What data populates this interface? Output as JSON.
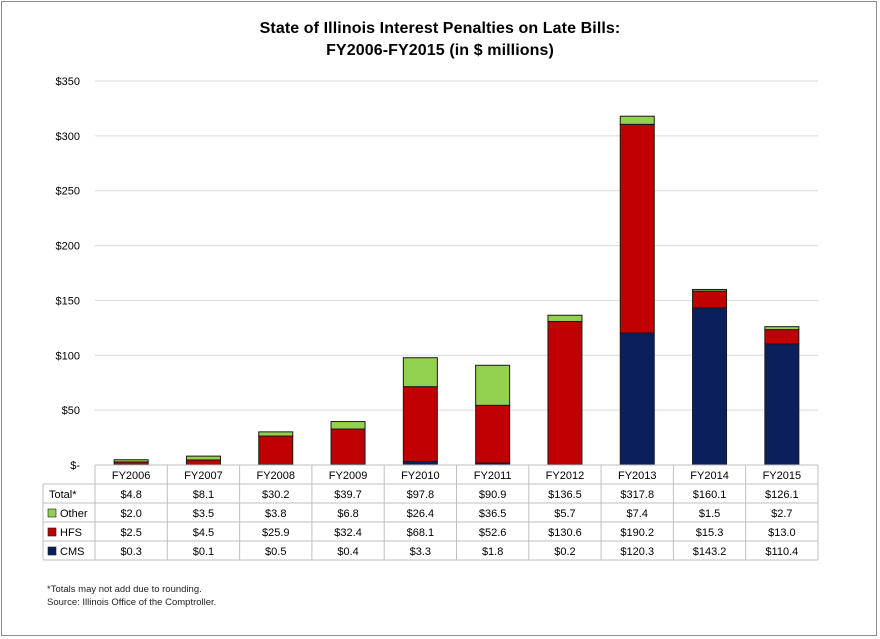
{
  "chart_data": {
    "type": "bar",
    "stacked": true,
    "title_line1": "State of Illinois Interest Penalties on Late Bills:",
    "title_line2": "FY2006-FY2015 (in $ millions)",
    "categories": [
      "FY2006",
      "FY2007",
      "FY2008",
      "FY2009",
      "FY2010",
      "FY2011",
      "FY2012",
      "FY2013",
      "FY2014",
      "FY2015"
    ],
    "ylim": [
      0,
      350
    ],
    "yticks": [
      {
        "value": 0,
        "label": "$-"
      },
      {
        "value": 50,
        "label": "$50"
      },
      {
        "value": 100,
        "label": "$100"
      },
      {
        "value": 150,
        "label": "$150"
      },
      {
        "value": 200,
        "label": "$200"
      },
      {
        "value": 250,
        "label": "$250"
      },
      {
        "value": 300,
        "label": "$300"
      },
      {
        "value": 350,
        "label": "$350"
      }
    ],
    "grid": true,
    "total_row": {
      "label": "Total*",
      "values": [
        "$4.8",
        "$8.1",
        "$30.2",
        "$39.7",
        "$97.8",
        "$90.9",
        "$136.5",
        "$317.8",
        "$160.1",
        "$126.1"
      ]
    },
    "series": [
      {
        "name": "CMS",
        "color": "#0b1f5c",
        "values": [
          0.3,
          0.1,
          0.5,
          0.4,
          3.3,
          1.8,
          0.2,
          120.3,
          143.2,
          110.4
        ],
        "labels": [
          "$0.3",
          "$0.1",
          "$0.5",
          "$0.4",
          "$3.3",
          "$1.8",
          "$0.2",
          "$120.3",
          "$143.2",
          "$110.4"
        ]
      },
      {
        "name": "HFS",
        "color": "#c00000",
        "values": [
          2.5,
          4.5,
          25.9,
          32.4,
          68.1,
          52.6,
          130.6,
          190.2,
          15.3,
          13.0
        ],
        "labels": [
          "$2.5",
          "$4.5",
          "$25.9",
          "$32.4",
          "$68.1",
          "$52.6",
          "$130.6",
          "$190.2",
          "$15.3",
          "$13.0"
        ]
      },
      {
        "name": "Other",
        "color": "#92d050",
        "values": [
          2.0,
          3.5,
          3.8,
          6.8,
          26.4,
          36.5,
          5.7,
          7.4,
          1.5,
          2.7
        ],
        "labels": [
          "$2.0",
          "$3.5",
          "$3.8",
          "$6.8",
          "$26.4",
          "$36.5",
          "$5.7",
          "$7.4",
          "$1.5",
          "$2.7"
        ]
      }
    ],
    "table_row_order": [
      "Other",
      "HFS",
      "CMS"
    ],
    "footnotes": [
      "*Totals may not add due to rounding.",
      "Source: Illinois Office of the Comptroller."
    ]
  }
}
